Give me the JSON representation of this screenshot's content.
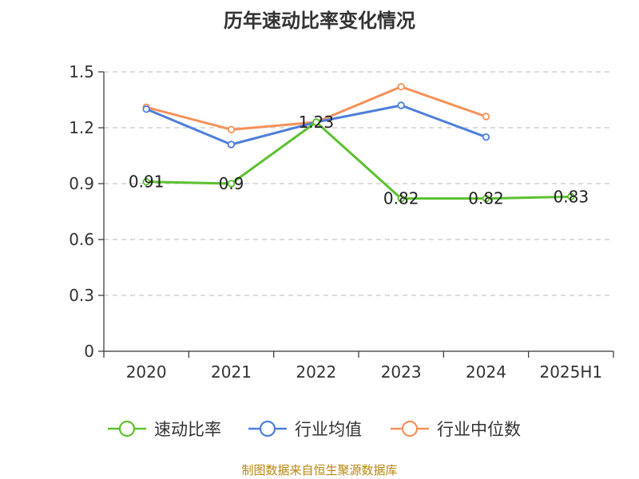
{
  "title": "历年速动比率变化情况",
  "source": "制图数据来自恒生聚源数据库",
  "chart_data": {
    "type": "line",
    "title": "历年速动比率变化情况",
    "categories": [
      "2020",
      "2021",
      "2022",
      "2023",
      "2024",
      "2025H1"
    ],
    "ylim": [
      0,
      1.5
    ],
    "yticks": [
      "0",
      "0.3",
      "0.6",
      "0.9",
      "1.2",
      "1.5"
    ],
    "grid": true,
    "legend_position": "bottom",
    "series": [
      {
        "name": "速动比率",
        "color": "#5cc130",
        "values": [
          0.91,
          0.9,
          1.23,
          0.82,
          0.82,
          0.83
        ],
        "labels": [
          "0.91",
          "0.9",
          "1.23",
          "0.82",
          "0.82",
          "0.83"
        ],
        "show_labels": true
      },
      {
        "name": "行业均值",
        "color": "#4e7fd8",
        "values": [
          1.3,
          1.11,
          1.23,
          1.32,
          1.15,
          null
        ],
        "show_labels": false
      },
      {
        "name": "行业中位数",
        "color": "#f6915a",
        "values": [
          1.31,
          1.19,
          1.23,
          1.42,
          1.26,
          null
        ],
        "show_labels": false
      }
    ]
  }
}
